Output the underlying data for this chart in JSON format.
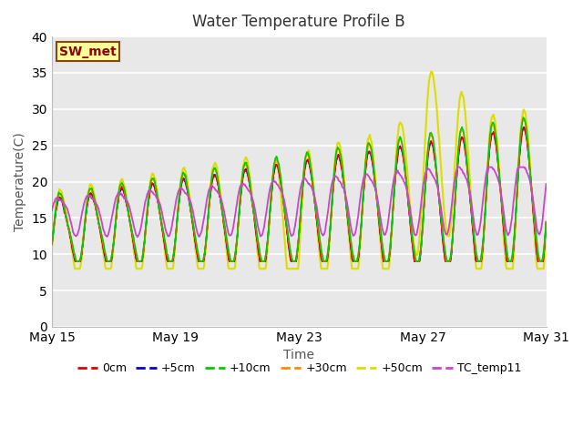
{
  "title": "Water Temperature Profile B",
  "xlabel": "Time",
  "ylabel": "Temperature(C)",
  "annotation": "SW_met",
  "ylim": [
    0,
    40
  ],
  "yticks": [
    0,
    5,
    10,
    15,
    20,
    25,
    30,
    35,
    40
  ],
  "xtick_labels": [
    "May 15",
    "May 19",
    "May 23",
    "May 27",
    "May 31"
  ],
  "xtick_positions": [
    0,
    4,
    8,
    12,
    16
  ],
  "legend_entries": [
    "0cm",
    "+5cm",
    "+10cm",
    "+30cm",
    "+50cm",
    "TC_temp11"
  ],
  "line_colors": [
    "#dd0000",
    "#0000dd",
    "#00cc00",
    "#ff8800",
    "#dddd00",
    "#cc44cc"
  ],
  "bg_color": "#e8e8e8",
  "title_fontsize": 12,
  "axis_fontsize": 10,
  "legend_fontsize": 9
}
